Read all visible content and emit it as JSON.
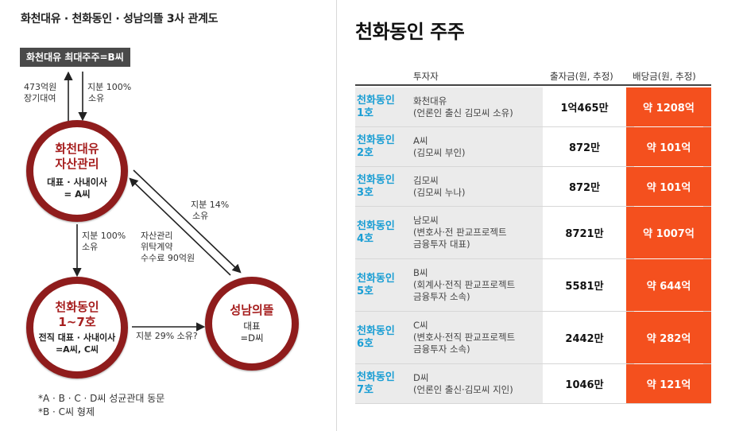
{
  "diagram": {
    "title": "화천대유 · 천화동인 · 성남의뜰 3사 관계도",
    "top_box": "화천대유 최대주주=B씨",
    "loan_label": [
      "473억원",
      "장기대여"
    ],
    "stake100_top_label": [
      "지분 100%",
      "소유"
    ],
    "asset_circle": {
      "title": [
        "화천대유",
        "자산관리"
      ],
      "sub": [
        "대표 · 사내이사",
        "= A씨"
      ]
    },
    "stake100_mid_label": [
      "지분 100%",
      "소유"
    ],
    "stake14_label": [
      "지분 14%",
      "소유"
    ],
    "contract_label": [
      "자산관리",
      "위탁계약",
      "수수료 90억원"
    ],
    "chd_circle": {
      "title": [
        "천화동인",
        "1~7호"
      ],
      "sub": [
        "전직 대표 · 사내이사",
        "=A씨, C씨"
      ]
    },
    "stake29_label": "지분 29% 소유?",
    "snu_circle": {
      "title": "성남의뜰",
      "sub": [
        "대표",
        "=D씨"
      ]
    },
    "notes": [
      "*A · B · C · D씨 성균관대 동문",
      "*B · C씨 형제"
    ]
  },
  "table": {
    "title": "천화동인 주주",
    "headers": {
      "investor": "투자자",
      "amount": "출자금(원, 추정)",
      "dividend": "배당금(원, 추정)"
    },
    "rows": [
      {
        "fund": [
          "천화동인",
          "1호"
        ],
        "investor": [
          "화천대유",
          "(언론인 출신 김모씨 소유)"
        ],
        "amount": "1억465만",
        "dividend": "약 1208억"
      },
      {
        "fund": [
          "천화동인",
          "2호"
        ],
        "investor": [
          "A씨",
          "(김모씨 부인)"
        ],
        "amount": "872만",
        "dividend": "약 101억"
      },
      {
        "fund": [
          "천화동인",
          "3호"
        ],
        "investor": [
          "김모씨",
          "(김모씨 누나)"
        ],
        "amount": "872만",
        "dividend": "약 101억"
      },
      {
        "fund": [
          "천화동인",
          "4호"
        ],
        "investor": [
          "남모씨",
          "(변호사·전 판교프로젝트",
          "금융투자 대표)"
        ],
        "amount": "8721만",
        "dividend": "약 1007억"
      },
      {
        "fund": [
          "천화동인",
          "5호"
        ],
        "investor": [
          "B씨",
          "(회계사·전직 판교프로젝트",
          "금융투자 소속)"
        ],
        "amount": "5581만",
        "dividend": "약 644억"
      },
      {
        "fund": [
          "천화동인",
          "6호"
        ],
        "investor": [
          "C씨",
          "(변호사·전직 판교프로젝트",
          "금융투자 소속)"
        ],
        "amount": "2442만",
        "dividend": "약 282억"
      },
      {
        "fund": [
          "천화동인",
          "7호"
        ],
        "investor": [
          "D씨",
          "(언론인 출신·김모씨 지인)"
        ],
        "amount": "1046만",
        "dividend": "약 121억"
      }
    ]
  },
  "colors": {
    "circle_border": "#8f1c1c",
    "circle_title": "#a61e1e",
    "fund_text": "#1a9ed4",
    "dividend_bg": "#f4501e"
  }
}
